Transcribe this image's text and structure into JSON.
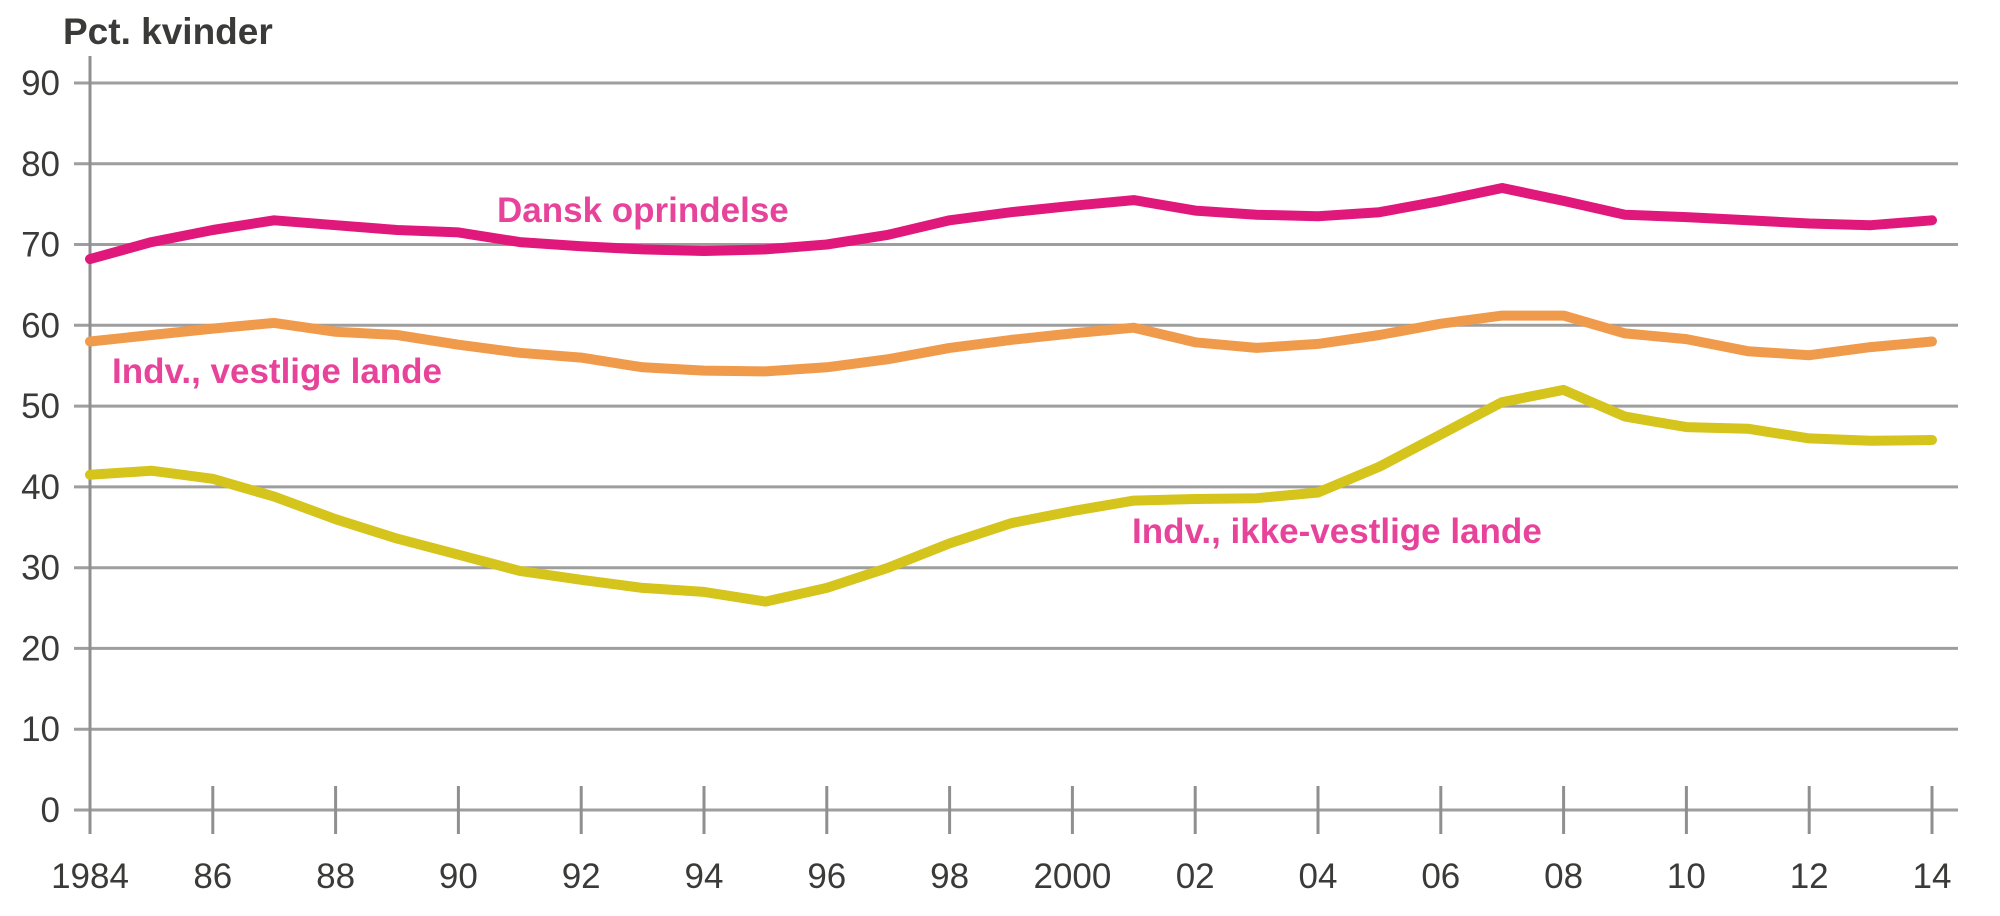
{
  "page": {
    "background": "#ffffff"
  },
  "chart_data": {
    "type": "line",
    "title": "Pct. kvinder",
    "xlabel": "",
    "ylabel": "Pct. kvinder",
    "grid": true,
    "legend_position": "inline-labels-on-plot",
    "ylim": [
      0,
      90
    ],
    "y_ticks": [
      0,
      10,
      20,
      30,
      40,
      50,
      60,
      70,
      80,
      90
    ],
    "x_tick_years": [
      1984,
      1986,
      1988,
      1990,
      1992,
      1994,
      1996,
      1998,
      2000,
      2002,
      2004,
      2006,
      2008,
      2010,
      2012,
      2014
    ],
    "x_tick_labels": [
      "1984",
      "86",
      "88",
      "90",
      "92",
      "94",
      "96",
      "98",
      "2000",
      "02",
      "04",
      "06",
      "08",
      "10",
      "12",
      "14"
    ],
    "x": [
      1984,
      1985,
      1986,
      1987,
      1988,
      1989,
      1990,
      1991,
      1992,
      1993,
      1994,
      1995,
      1996,
      1997,
      1998,
      1999,
      2000,
      2001,
      2002,
      2003,
      2004,
      2005,
      2006,
      2007,
      2008,
      2009,
      2010,
      2011,
      2012,
      2013,
      2014
    ],
    "colors": {
      "gridline": "#9e9e9e",
      "axis": "#8f8f8f",
      "tick_text": "#3a3a39",
      "title_text": "#3a3a39",
      "series_label_text": "#e8439a"
    },
    "series": [
      {
        "name": "Dansk oprindelse",
        "color": "#e0187c",
        "values": [
          68.2,
          70.3,
          71.8,
          73.0,
          72.4,
          71.8,
          71.5,
          70.3,
          69.8,
          69.4,
          69.2,
          69.4,
          70.0,
          71.2,
          73.0,
          74.0,
          74.8,
          75.5,
          74.2,
          73.7,
          73.5,
          74.0,
          75.4,
          77.0,
          75.4,
          73.7,
          73.4,
          73.0,
          72.6,
          72.4,
          73.0
        ]
      },
      {
        "name": "Indv., vestlige lande",
        "color": "#f09a4c",
        "values": [
          58.0,
          58.8,
          59.6,
          60.3,
          59.2,
          58.8,
          57.6,
          56.6,
          56.0,
          54.8,
          54.4,
          54.3,
          54.8,
          55.8,
          57.2,
          58.2,
          59.0,
          59.7,
          57.9,
          57.2,
          57.7,
          58.8,
          60.2,
          61.2,
          61.2,
          59.0,
          58.3,
          56.8,
          56.3,
          57.3,
          58.0
        ]
      },
      {
        "name": "Indv., ikke-vestlige lande",
        "color": "#d5c41b",
        "values": [
          41.5,
          42.0,
          41.0,
          38.8,
          36.0,
          33.6,
          31.6,
          29.6,
          28.5,
          27.5,
          27.0,
          25.8,
          27.5,
          30.0,
          33.0,
          35.5,
          37.0,
          38.3,
          38.5,
          38.6,
          39.3,
          42.5,
          46.5,
          50.5,
          52.0,
          48.7,
          47.4,
          47.2,
          46.0,
          45.7,
          45.8
        ]
      }
    ]
  }
}
